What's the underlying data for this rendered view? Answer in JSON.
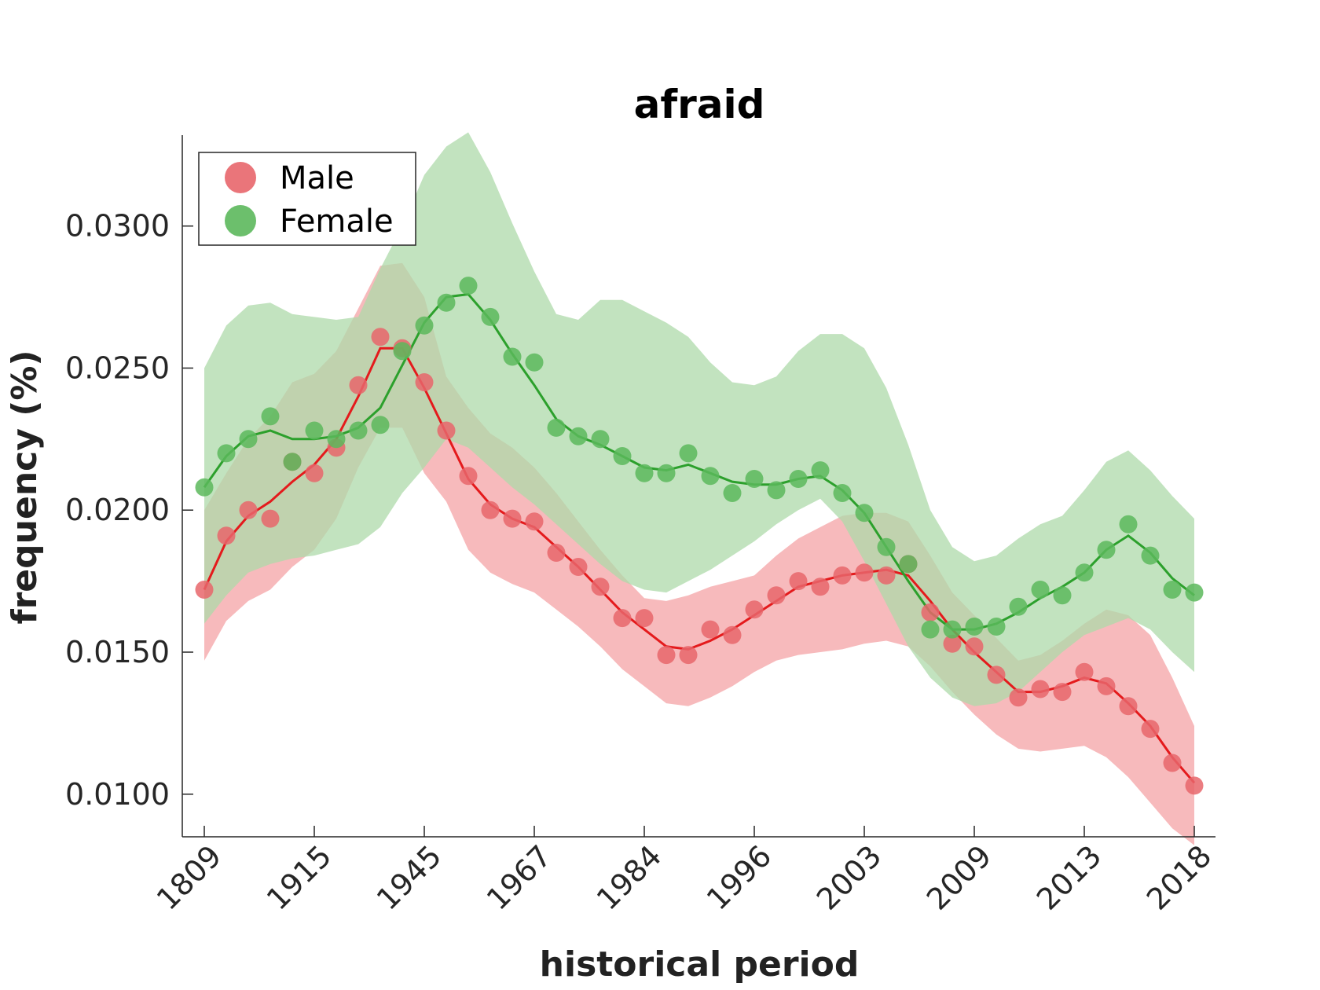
{
  "chart_data": {
    "type": "line",
    "title": "afraid",
    "xlabel": "historical period",
    "ylabel": "frequency (%)",
    "ylim": [
      0.0085,
      0.0332
    ],
    "yticks": [
      "0.0100",
      "0.0150",
      "0.0200",
      "0.0250",
      "0.0300"
    ],
    "ytick_values": [
      0.01,
      0.015,
      0.02,
      0.025,
      0.03
    ],
    "xtick_labels": [
      "1809",
      "1915",
      "1945",
      "1967",
      "1984",
      "1996",
      "2003",
      "2009",
      "2013",
      "2018"
    ],
    "xtick_positions": [
      0,
      5,
      10,
      15,
      20,
      25,
      30,
      35,
      40,
      45
    ],
    "n_points": 46,
    "legend": {
      "placement": "top-left",
      "entries": [
        "Male",
        "Female"
      ]
    },
    "grid": false,
    "series": [
      {
        "name": "Male",
        "color": "#e41a1c",
        "marker_color": "#e8666b",
        "band_color": "#f4a3a5",
        "points": [
          0.0172,
          0.0191,
          0.02,
          0.0197,
          0.0217,
          0.0213,
          0.0222,
          0.0244,
          0.0261,
          0.0257,
          0.0245,
          0.0228,
          0.0212,
          0.02,
          0.0197,
          0.0196,
          0.0185,
          0.018,
          0.0173,
          0.0162,
          0.0162,
          0.0149,
          0.0149,
          0.0158,
          0.0156,
          0.0165,
          0.017,
          0.0175,
          0.0173,
          0.0177,
          0.0178,
          0.0177,
          0.0181,
          0.0164,
          0.0153,
          0.0152,
          0.0142,
          0.0134,
          0.0137,
          0.0136,
          0.0143,
          0.0138,
          0.0131,
          0.0123,
          0.0111,
          0.0103
        ],
        "smooth": [
          0.0172,
          0.0189,
          0.0198,
          0.0203,
          0.021,
          0.0216,
          0.0225,
          0.024,
          0.0257,
          0.0257,
          0.0243,
          0.0227,
          0.0211,
          0.0202,
          0.0197,
          0.0194,
          0.0187,
          0.018,
          0.0172,
          0.0164,
          0.0158,
          0.0152,
          0.0151,
          0.0154,
          0.0158,
          0.0163,
          0.0168,
          0.0173,
          0.0175,
          0.0177,
          0.0178,
          0.0179,
          0.0177,
          0.0168,
          0.0158,
          0.015,
          0.0143,
          0.0136,
          0.0136,
          0.0138,
          0.0141,
          0.0139,
          0.0132,
          0.0124,
          0.0113,
          0.0104
        ],
        "lower": [
          0.0147,
          0.0161,
          0.0168,
          0.0172,
          0.018,
          0.0186,
          0.0197,
          0.0215,
          0.0229,
          0.0229,
          0.0213,
          0.0203,
          0.0186,
          0.0178,
          0.0174,
          0.0171,
          0.0165,
          0.0159,
          0.0152,
          0.0144,
          0.0138,
          0.0132,
          0.0131,
          0.0134,
          0.0138,
          0.0143,
          0.0147,
          0.0149,
          0.015,
          0.0151,
          0.0153,
          0.0154,
          0.0152,
          0.0145,
          0.0136,
          0.0128,
          0.0121,
          0.0116,
          0.0115,
          0.0116,
          0.0117,
          0.0113,
          0.0106,
          0.0097,
          0.0088,
          0.0082
        ],
        "upper": [
          0.02,
          0.0213,
          0.0225,
          0.0233,
          0.0245,
          0.0248,
          0.0256,
          0.0271,
          0.0286,
          0.0287,
          0.0275,
          0.0247,
          0.0236,
          0.0227,
          0.0222,
          0.0215,
          0.0206,
          0.0196,
          0.0186,
          0.0177,
          0.0169,
          0.0168,
          0.017,
          0.0173,
          0.0175,
          0.0177,
          0.0184,
          0.019,
          0.0194,
          0.0198,
          0.0199,
          0.0199,
          0.0196,
          0.0184,
          0.0171,
          0.0163,
          0.0155,
          0.0147,
          0.0149,
          0.0154,
          0.016,
          0.0165,
          0.0163,
          0.0156,
          0.0141,
          0.0124
        ]
      },
      {
        "name": "Female",
        "color": "#2ca02c",
        "marker_color": "#5cb85c",
        "band_color": "#addaa9",
        "points": [
          0.0208,
          0.022,
          0.0225,
          0.0233,
          0.0217,
          0.0228,
          0.0225,
          0.0228,
          0.023,
          0.0256,
          0.0265,
          0.0273,
          0.0279,
          0.0268,
          0.0254,
          0.0252,
          0.0229,
          0.0226,
          0.0225,
          0.0219,
          0.0213,
          0.0213,
          0.022,
          0.0212,
          0.0206,
          0.0211,
          0.0207,
          0.0211,
          0.0214,
          0.0206,
          0.0199,
          0.0187,
          0.0181,
          0.0158,
          0.0158,
          0.0159,
          0.0159,
          0.0166,
          0.0172,
          0.017,
          0.0178,
          0.0186,
          0.0195,
          0.0184,
          0.0172,
          0.0171
        ],
        "smooth": [
          0.0208,
          0.0219,
          0.0226,
          0.0228,
          0.0225,
          0.0225,
          0.0226,
          0.0229,
          0.0236,
          0.0251,
          0.0266,
          0.0275,
          0.0276,
          0.0267,
          0.0255,
          0.0244,
          0.0232,
          0.0226,
          0.0223,
          0.0219,
          0.0215,
          0.0214,
          0.0216,
          0.0213,
          0.021,
          0.0209,
          0.0209,
          0.0211,
          0.0212,
          0.0207,
          0.0199,
          0.0187,
          0.0175,
          0.0164,
          0.0158,
          0.0158,
          0.016,
          0.0164,
          0.0169,
          0.0173,
          0.0178,
          0.0186,
          0.0191,
          0.0185,
          0.0176,
          0.017
        ],
        "lower": [
          0.016,
          0.017,
          0.0178,
          0.0181,
          0.0183,
          0.0184,
          0.0186,
          0.0188,
          0.0194,
          0.0206,
          0.0215,
          0.0225,
          0.0222,
          0.0215,
          0.0208,
          0.0202,
          0.0195,
          0.0188,
          0.0181,
          0.0175,
          0.0172,
          0.0171,
          0.0175,
          0.0179,
          0.0184,
          0.0189,
          0.0195,
          0.02,
          0.0204,
          0.0196,
          0.0182,
          0.0167,
          0.0152,
          0.0141,
          0.0134,
          0.0131,
          0.0132,
          0.0136,
          0.0143,
          0.015,
          0.0156,
          0.0159,
          0.0162,
          0.0158,
          0.015,
          0.0143
        ],
        "upper": [
          0.025,
          0.0265,
          0.0272,
          0.0273,
          0.0269,
          0.0268,
          0.0267,
          0.0268,
          0.0285,
          0.03,
          0.0318,
          0.0328,
          0.0333,
          0.0319,
          0.0301,
          0.0284,
          0.0269,
          0.0267,
          0.0274,
          0.0274,
          0.027,
          0.0266,
          0.0261,
          0.0252,
          0.0245,
          0.0244,
          0.0247,
          0.0256,
          0.0262,
          0.0262,
          0.0257,
          0.0243,
          0.0223,
          0.02,
          0.0187,
          0.0182,
          0.0184,
          0.019,
          0.0195,
          0.0198,
          0.0207,
          0.0217,
          0.0221,
          0.0214,
          0.0205,
          0.0197
        ]
      }
    ]
  }
}
